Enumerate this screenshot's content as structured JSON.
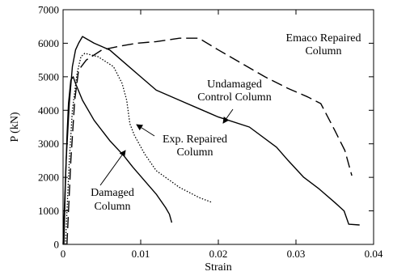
{
  "chart_data": {
    "type": "line",
    "xlabel": "Strain",
    "ylabel": "P (kN)",
    "xlim": [
      0,
      0.04
    ],
    "ylim": [
      0,
      7000
    ],
    "x_ticks": [
      0,
      0.01,
      0.02,
      0.03,
      0.04
    ],
    "x_tick_labels": [
      "0",
      "0.01",
      "0.02",
      "0.03",
      "0.04"
    ],
    "y_ticks": [
      0,
      1000,
      2000,
      3000,
      4000,
      5000,
      6000,
      7000
    ],
    "y_tick_labels": [
      "0",
      "1000",
      "2000",
      "3000",
      "4000",
      "5000",
      "6000",
      "7000"
    ],
    "grid": false,
    "series": [
      {
        "name": "Undamaged Control Column",
        "style": "solid",
        "points": [
          [
            0,
            0
          ],
          [
            0.0004,
            2500
          ],
          [
            0.0008,
            4200
          ],
          [
            0.0012,
            5300
          ],
          [
            0.0016,
            5800
          ],
          [
            0.002,
            6000
          ],
          [
            0.0025,
            6200
          ],
          [
            0.004,
            6000
          ],
          [
            0.006,
            5800
          ],
          [
            0.008,
            5400
          ],
          [
            0.01,
            5000
          ],
          [
            0.012,
            4600
          ],
          [
            0.015,
            4300
          ],
          [
            0.018,
            4000
          ],
          [
            0.02,
            3800
          ],
          [
            0.024,
            3500
          ],
          [
            0.0275,
            2900
          ],
          [
            0.029,
            2500
          ],
          [
            0.031,
            2000
          ],
          [
            0.033,
            1650
          ],
          [
            0.035,
            1250
          ],
          [
            0.0362,
            1000
          ],
          [
            0.0368,
            600
          ],
          [
            0.0382,
            580
          ]
        ]
      },
      {
        "name": "Emaco Repaired Column",
        "style": "dashed",
        "points": [
          [
            0.0005,
            0
          ],
          [
            0.001,
            2500
          ],
          [
            0.0015,
            4300
          ],
          [
            0.002,
            5200
          ],
          [
            0.003,
            5500
          ],
          [
            0.005,
            5800
          ],
          [
            0.007,
            5900
          ],
          [
            0.0095,
            6000
          ],
          [
            0.012,
            6050
          ],
          [
            0.015,
            6150
          ],
          [
            0.0175,
            6150
          ],
          [
            0.02,
            5800
          ],
          [
            0.023,
            5400
          ],
          [
            0.026,
            5000
          ],
          [
            0.029,
            4650
          ],
          [
            0.0315,
            4400
          ],
          [
            0.0332,
            4200
          ],
          [
            0.035,
            3400
          ],
          [
            0.0363,
            2800
          ],
          [
            0.0372,
            2050
          ]
        ]
      },
      {
        "name": "Exp. Repaired Column",
        "style": "dotted",
        "points": [
          [
            0.0003,
            0
          ],
          [
            0.0008,
            2500
          ],
          [
            0.0012,
            4000
          ],
          [
            0.0018,
            5100
          ],
          [
            0.0023,
            5600
          ],
          [
            0.0028,
            5700
          ],
          [
            0.0045,
            5600
          ],
          [
            0.0065,
            5300
          ],
          [
            0.0076,
            4800
          ],
          [
            0.0082,
            4300
          ],
          [
            0.0086,
            3600
          ],
          [
            0.0092,
            3250
          ],
          [
            0.0105,
            2700
          ],
          [
            0.012,
            2200
          ],
          [
            0.015,
            1700
          ],
          [
            0.0175,
            1400
          ],
          [
            0.0192,
            1250
          ]
        ]
      },
      {
        "name": "Damaged Column",
        "style": "solid",
        "points": [
          [
            0.0001,
            0
          ],
          [
            0.0003,
            1800
          ],
          [
            0.0005,
            3200
          ],
          [
            0.0007,
            4200
          ],
          [
            0.001,
            4900
          ],
          [
            0.0013,
            5000
          ],
          [
            0.0016,
            4800
          ],
          [
            0.0025,
            4300
          ],
          [
            0.004,
            3700
          ],
          [
            0.006,
            3100
          ],
          [
            0.0078,
            2650
          ],
          [
            0.009,
            2300
          ],
          [
            0.0105,
            1900
          ],
          [
            0.012,
            1500
          ],
          [
            0.0132,
            1100
          ],
          [
            0.0137,
            900
          ],
          [
            0.014,
            650
          ]
        ]
      }
    ],
    "annotations": [
      {
        "series": "Emaco Repaired Column",
        "lines": [
          "Emaco Repaired",
          "Column"
        ]
      },
      {
        "series": "Undamaged Control Column",
        "lines": [
          "Undamaged",
          "Control Column"
        ]
      },
      {
        "series": "Exp. Repaired Column",
        "lines": [
          "Exp. Repaired",
          "Column"
        ]
      },
      {
        "series": "Damaged Column",
        "lines": [
          "Damaged",
          "Column"
        ]
      }
    ]
  }
}
